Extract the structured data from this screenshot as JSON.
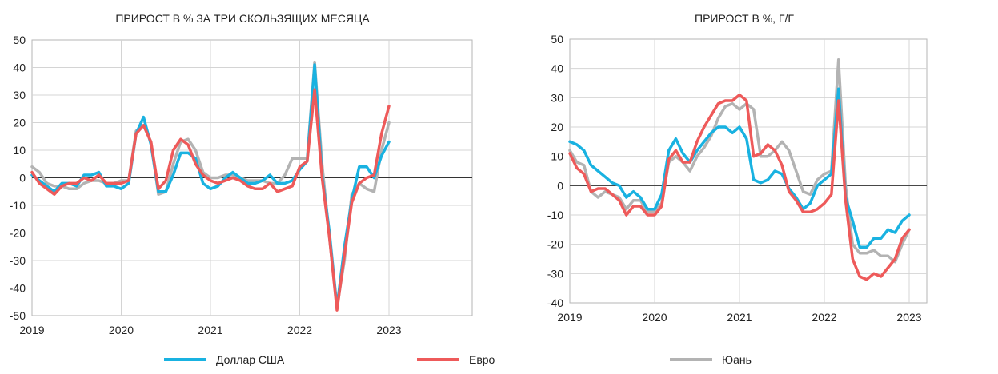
{
  "chart_data": [
    {
      "type": "line",
      "title": "ПРИРОСТ В % ЗА ТРИ СКОЛЬЗЯЩИХ МЕСЯЦА",
      "xlabel": "",
      "ylabel": "",
      "x_tick_labels": [
        "2019",
        "2020",
        "2021",
        "2022",
        "2023"
      ],
      "y_tick_labels": [
        "50",
        "40",
        "30",
        "20",
        "10",
        "0",
        "-10",
        "-20",
        "-30",
        "-40",
        "-50"
      ],
      "ylim": [
        -50,
        50
      ],
      "x_start": "2019-01",
      "x_step": "month",
      "grid": true,
      "series": [
        {
          "name": "Доллар США",
          "color": "#19b2e1",
          "values": [
            1,
            -1,
            -3,
            -5,
            -2,
            -2,
            -3,
            1,
            1,
            2,
            -3,
            -3,
            -4,
            -2,
            16,
            22,
            12,
            -5,
            -5,
            1,
            9,
            9,
            7,
            -2,
            -4,
            -3,
            0,
            2,
            0,
            -2,
            -2,
            -1,
            1,
            -2,
            -2,
            -1,
            3,
            6,
            41,
            1,
            -20,
            -47,
            -25,
            -8,
            4,
            4,
            0,
            8,
            13
          ]
        },
        {
          "name": "Евро",
          "color": "#ee5a5a",
          "values": [
            2,
            -2,
            -4,
            -6,
            -3,
            -2,
            -2,
            0,
            -1,
            1,
            -2,
            -2,
            -2,
            -1,
            16,
            19,
            13,
            -4,
            -1,
            10,
            14,
            12,
            5,
            1,
            -1,
            -2,
            -1,
            0,
            -1,
            -3,
            -4,
            -4,
            -2,
            -5,
            -4,
            -3,
            4,
            6,
            32,
            0,
            -22,
            -48,
            -28,
            -9,
            -2,
            0,
            1,
            16,
            26
          ]
        },
        {
          "name": "Юань",
          "color": "#b3b3b3",
          "values": [
            4,
            2,
            -2,
            -3,
            -3,
            -4,
            -4,
            -2,
            -1,
            -1,
            -2,
            -2,
            -1,
            -1,
            17,
            19,
            13,
            -6,
            -5,
            5,
            13,
            14,
            10,
            2,
            0,
            0,
            1,
            1,
            0,
            -1,
            -1,
            -1,
            -2,
            -2,
            1,
            7,
            7,
            7,
            42,
            5,
            -22,
            -47,
            -30,
            -6,
            -2,
            -4,
            -5,
            10,
            20
          ]
        }
      ]
    },
    {
      "type": "line",
      "title": "ПРИРОСТ В %, Г/Г",
      "xlabel": "",
      "ylabel": "",
      "x_tick_labels": [
        "2019",
        "2020",
        "2021",
        "2022",
        "2023"
      ],
      "y_tick_labels": [
        "50",
        "40",
        "30",
        "20",
        "10",
        "0",
        "-10",
        "-20",
        "-30",
        "-40"
      ],
      "ylim": [
        -40,
        50
      ],
      "x_start": "2019-01",
      "x_step": "month",
      "grid": true,
      "series": [
        {
          "name": "Доллар США",
          "color": "#19b2e1",
          "values": [
            15,
            14,
            12,
            7,
            5,
            3,
            1,
            0,
            -4,
            -2,
            -4,
            -8,
            -8,
            -3,
            12,
            16,
            11,
            8,
            12,
            15,
            18,
            20,
            20,
            18,
            20,
            16,
            2,
            1,
            2,
            5,
            4,
            -1,
            -4,
            -8,
            -6,
            0,
            2,
            4,
            33,
            -4,
            -12,
            -21,
            -21,
            -18,
            -18,
            -15,
            -16,
            -12,
            -10
          ]
        },
        {
          "name": "Евро",
          "color": "#ee5a5a",
          "values": [
            11,
            6,
            4,
            -2,
            -1,
            -1,
            -3,
            -5,
            -10,
            -7,
            -7,
            -10,
            -10,
            -7,
            9,
            12,
            8,
            8,
            15,
            20,
            24,
            28,
            29,
            29,
            31,
            29,
            10,
            11,
            14,
            12,
            7,
            -2,
            -5,
            -9,
            -9,
            -8,
            -6,
            -3,
            29,
            -5,
            -25,
            -31,
            -32,
            -30,
            -31,
            -28,
            -25,
            -18,
            -15
          ]
        },
        {
          "name": "Юань",
          "color": "#b3b3b3",
          "values": [
            12,
            8,
            7,
            -2,
            -4,
            -2,
            -3,
            -4,
            -8,
            -5,
            -5,
            -9,
            -9,
            -6,
            8,
            10,
            8,
            5,
            10,
            13,
            17,
            23,
            27,
            28,
            26,
            28,
            26,
            10,
            10,
            12,
            15,
            12,
            5,
            -2,
            -3,
            2,
            4,
            5,
            43,
            0,
            -20,
            -23,
            -23,
            -22,
            -24,
            -24,
            -26,
            -20,
            -15
          ]
        }
      ]
    }
  ],
  "legend": [
    {
      "label": "Доллар США",
      "color": "#19b2e1"
    },
    {
      "label": "Евро",
      "color": "#ee5a5a"
    },
    {
      "label": "Юань",
      "color": "#b3b3b3"
    }
  ]
}
